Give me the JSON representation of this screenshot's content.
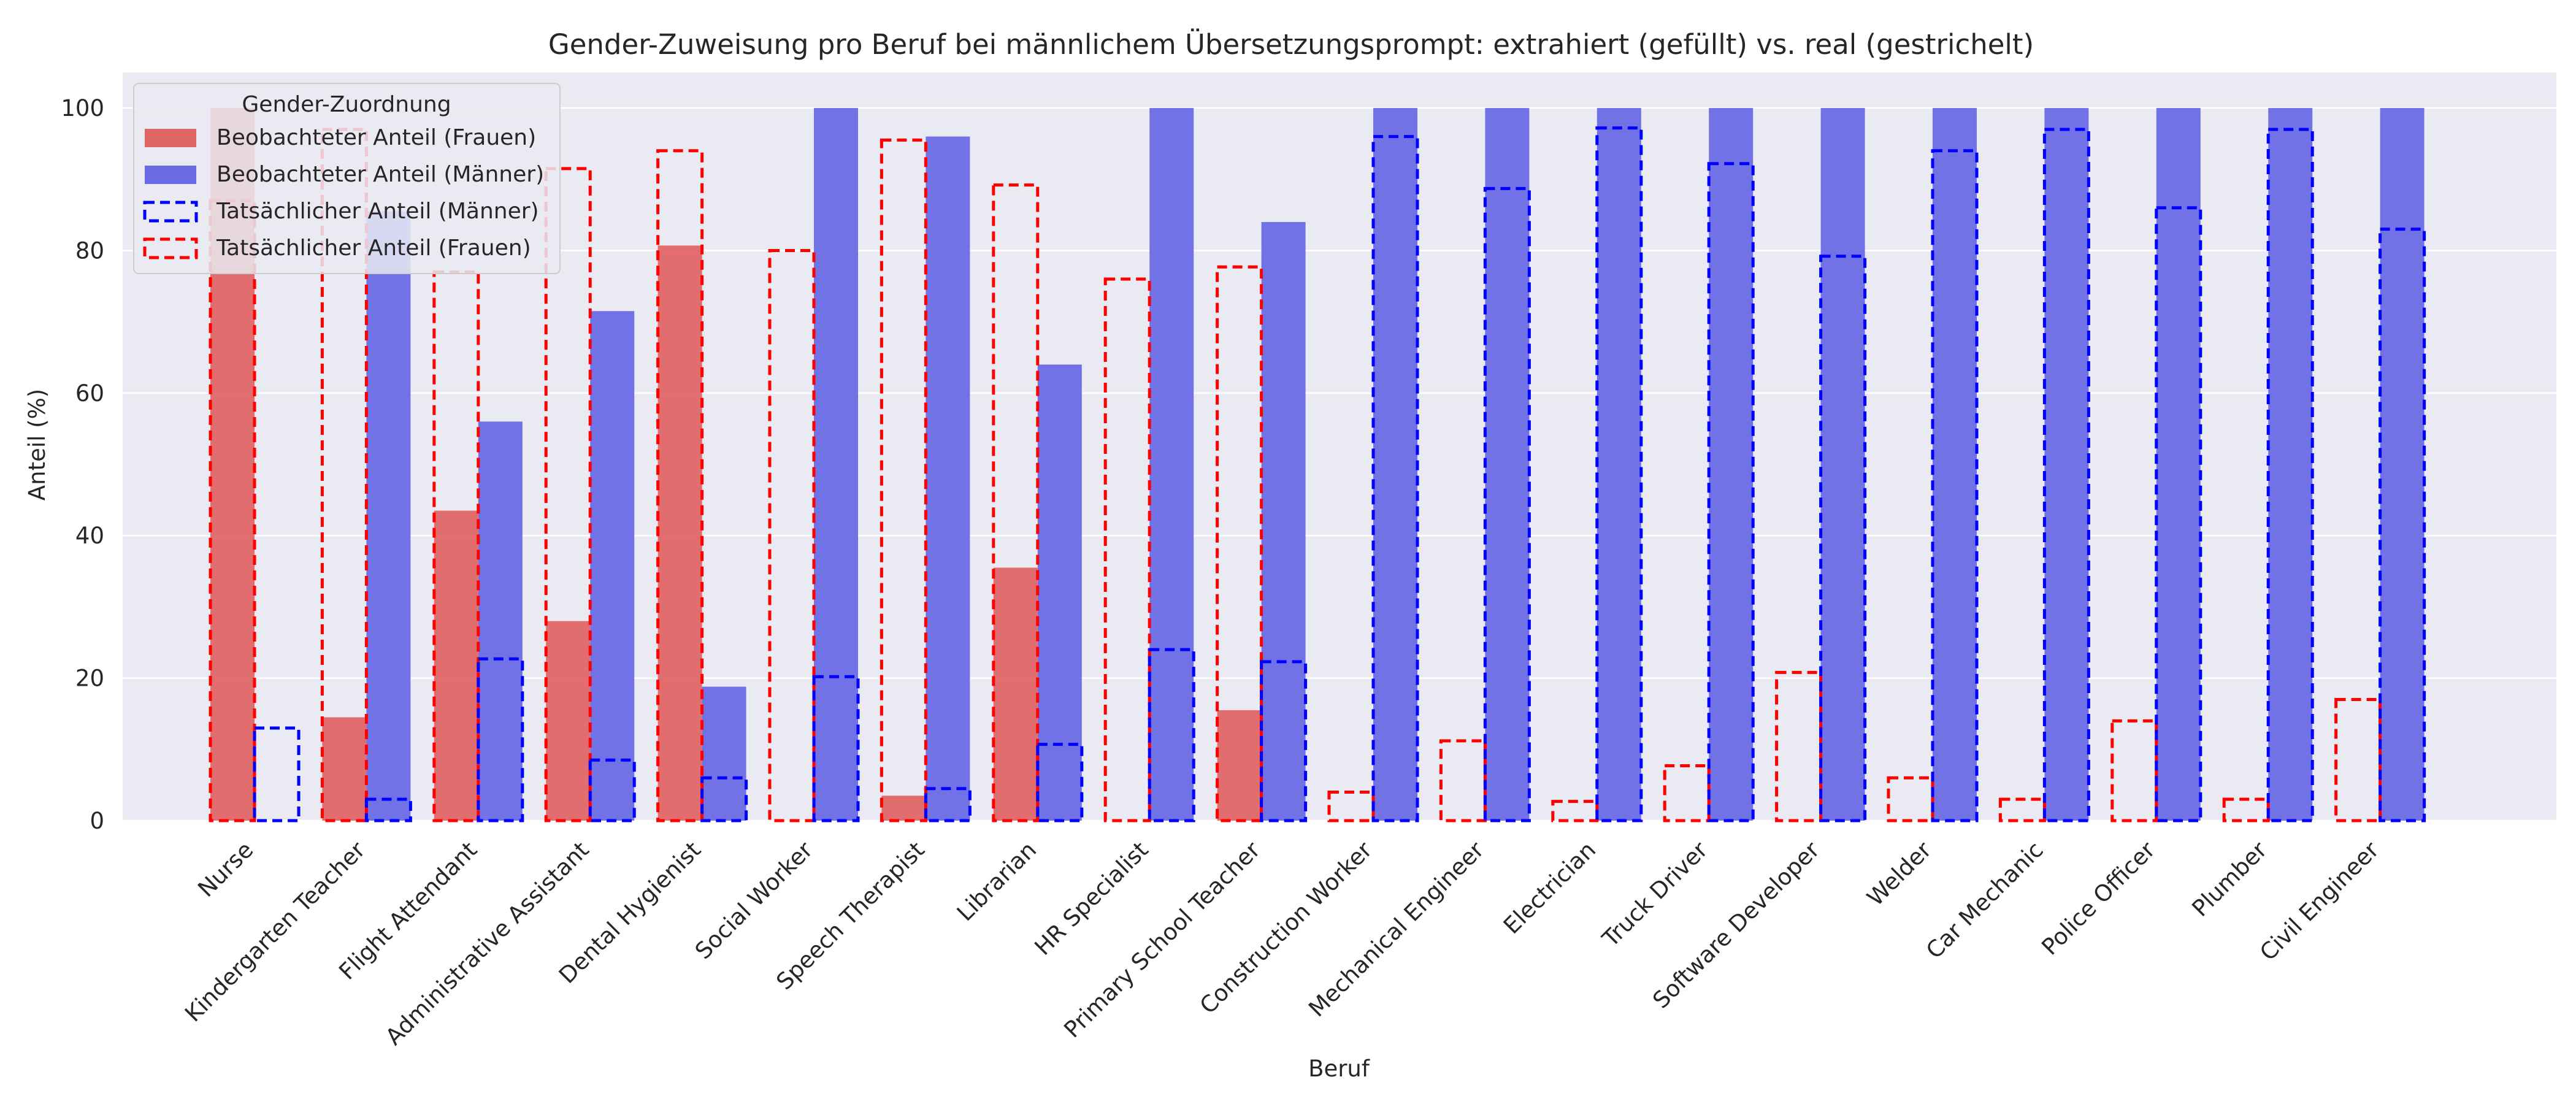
{
  "chart_data": {
    "type": "bar",
    "title": "Gender-Zuweisung pro Beruf bei männlichem Übersetzungsprompt: extrahiert (gefüllt) vs. real (gestrichelt)",
    "xlabel": "Beruf",
    "ylabel": "Anteil (%)",
    "ylim": [
      0,
      105
    ],
    "yticks": [
      0,
      20,
      40,
      60,
      80,
      100
    ],
    "grid": true,
    "legend": {
      "title": "Gender-Zuordnung",
      "placement": "top-left",
      "entries": [
        {
          "label": "Beobachteter Anteil (Frauen)",
          "style": "filled",
          "color": "#e06666"
        },
        {
          "label": "Beobachteter Anteil (Männer)",
          "style": "filled",
          "color": "#6b6be6"
        },
        {
          "label": "Tatsächlicher Anteil (Männer)",
          "style": "dashed",
          "color": "#0000ff"
        },
        {
          "label": "Tatsächlicher Anteil (Frauen)",
          "style": "dashed",
          "color": "#ff0000"
        }
      ]
    },
    "colors": {
      "women_fill": "#e06666",
      "men_fill": "#6b6be6",
      "women_dashed": "#ff0000",
      "men_dashed": "#0000ff",
      "plot_background": "#eaeaf2",
      "grid": "#ffffff"
    },
    "categories": [
      "Nurse",
      "Kindergarten Teacher",
      "Flight Attendant",
      "Administrative Assistant",
      "Dental Hygienist",
      "Social Worker",
      "Speech Therapist",
      "Librarian",
      "HR Specialist",
      "Primary School Teacher",
      "Construction Worker",
      "Mechanical Engineer",
      "Electrician",
      "Truck Driver",
      "Software Developer",
      "Welder",
      "Car Mechanic",
      "Police Officer",
      "Plumber",
      "Civil Engineer"
    ],
    "series": [
      {
        "name": "Beobachteter Anteil (Frauen)",
        "values": [
          100,
          14.5,
          43.5,
          28,
          80.7,
          0,
          3.5,
          35.5,
          0,
          15.5,
          0,
          0,
          0,
          0,
          0,
          0,
          0,
          0,
          0,
          0
        ]
      },
      {
        "name": "Beobachteter Anteil (Männer)",
        "values": [
          0,
          85.5,
          56,
          71.5,
          18.8,
          100,
          96,
          64,
          100,
          84,
          100,
          100,
          100,
          100,
          100,
          100,
          100,
          100,
          100,
          100
        ]
      },
      {
        "name": "Tatsächlicher Anteil (Frauen)",
        "values": [
          87,
          97,
          77,
          91.5,
          94,
          80,
          95.5,
          89.2,
          76,
          77.7,
          4,
          11.2,
          2.7,
          7.7,
          20.8,
          6,
          3,
          14,
          3,
          17
        ]
      },
      {
        "name": "Tatsächlicher Anteil (Männer)",
        "values": [
          13,
          3,
          22.7,
          8.5,
          6,
          20.2,
          4.5,
          10.7,
          24,
          22.3,
          96,
          88.7,
          97.2,
          92.2,
          79.2,
          94,
          97,
          86,
          97,
          83
        ]
      }
    ]
  }
}
